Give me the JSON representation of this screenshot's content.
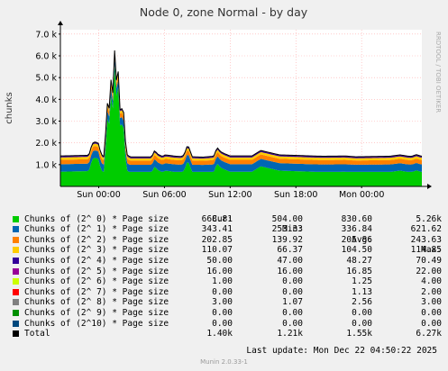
{
  "chart_data": {
    "type": "area",
    "title": "Node 0, zone Normal - by day",
    "ylabel": "chunks",
    "side_label": "RRDTOOL / TOBI OETIKER",
    "ylim": [
      0,
      7200
    ],
    "y_ticks": [
      {
        "value": 1000,
        "label": "1.0 k"
      },
      {
        "value": 2000,
        "label": "2.0 k"
      },
      {
        "value": 3000,
        "label": "3.0 k"
      },
      {
        "value": 4000,
        "label": "4.0 k"
      },
      {
        "value": 5000,
        "label": "5.0 k"
      },
      {
        "value": 6000,
        "label": "6.0 k"
      },
      {
        "value": 7000,
        "label": "7.0 k"
      }
    ],
    "x_range": [
      0,
      33
    ],
    "x_ticks": [
      {
        "value": 3.5,
        "label": "Sun 00:00"
      },
      {
        "value": 9.5,
        "label": "Sun 06:00"
      },
      {
        "value": 15.5,
        "label": "Sun 12:00"
      },
      {
        "value": 21.5,
        "label": "Sun 18:00"
      },
      {
        "value": 27.5,
        "label": "Mon 00:00"
      }
    ],
    "profile": {
      "x": [
        0,
        2.6,
        2.9,
        3.2,
        3.5,
        3.7,
        4.0,
        4.2,
        4.35,
        4.5,
        4.65,
        4.8,
        4.95,
        5.1,
        5.25,
        5.4,
        5.55,
        5.7,
        5.85,
        6.0,
        6.4,
        8.3,
        8.6,
        8.9,
        9.3,
        9.6,
        10.3,
        11.0,
        11.3,
        11.6,
        11.8,
        12.0,
        13.0,
        14.0,
        14.3,
        14.6,
        15.0,
        15.5,
        17.5,
        18.0,
        18.3,
        18.8,
        19.4,
        20.0,
        23.0,
        24.0,
        26.0,
        27.0,
        30.0,
        31.0,
        32.0,
        32.5,
        33.0
      ],
      "total": [
        1400,
        1430,
        1980,
        2050,
        1970,
        1480,
        1350,
        3100,
        4300,
        3300,
        5300,
        4200,
        6250,
        4800,
        5700,
        3600,
        3350,
        3900,
        2900,
        1500,
        1320,
        1320,
        1650,
        1480,
        1380,
        1450,
        1400,
        1350,
        1450,
        1900,
        1750,
        1330,
        1300,
        1380,
        1800,
        1600,
        1500,
        1400,
        1400,
        1560,
        1650,
        1590,
        1520,
        1450,
        1400,
        1380,
        1400,
        1330,
        1380,
        1450,
        1370,
        1460,
        1380
      ]
    },
    "series": [
      {
        "name": "Chunks of (2^ 0) * Page size",
        "color": "#00cc00",
        "cur": "668.81",
        "min": "504.00",
        "avg": "830.60",
        "max": "5.26k"
      },
      {
        "name": "Chunks of (2^ 1) * Page size",
        "color": "#0066b3",
        "cur": "343.41",
        "min": "253.33",
        "avg": "336.84",
        "max": "621.62"
      },
      {
        "name": "Chunks of (2^ 2) * Page size",
        "color": "#ff8000",
        "cur": "202.85",
        "min": "139.92",
        "avg": "205.86",
        "max": "243.63"
      },
      {
        "name": "Chunks of (2^ 3) * Page size",
        "color": "#ffcc00",
        "cur": "110.07",
        "min": "66.37",
        "avg": "104.50",
        "max": "114.85"
      },
      {
        "name": "Chunks of (2^ 4) * Page size",
        "color": "#330099",
        "cur": "50.00",
        "min": "47.00",
        "avg": "48.27",
        "max": "70.49"
      },
      {
        "name": "Chunks of (2^ 5) * Page size",
        "color": "#990099",
        "cur": "16.00",
        "min": "16.00",
        "avg": "16.85",
        "max": "22.00"
      },
      {
        "name": "Chunks of (2^ 6) * Page size",
        "color": "#ccff00",
        "cur": "1.00",
        "min": "0.00",
        "avg": "1.25",
        "max": "4.00"
      },
      {
        "name": "Chunks of (2^ 7) * Page size",
        "color": "#ff0000",
        "cur": "0.00",
        "min": "0.00",
        "avg": "1.13",
        "max": "2.00"
      },
      {
        "name": "Chunks of (2^ 8) * Page size",
        "color": "#808080",
        "cur": "3.00",
        "min": "1.07",
        "avg": "2.56",
        "max": "3.00"
      },
      {
        "name": "Chunks of (2^ 9) * Page size",
        "color": "#008f00",
        "cur": "0.00",
        "min": "0.00",
        "avg": "0.00",
        "max": "0.00"
      },
      {
        "name": "Chunks of (2^10) * Page size",
        "color": "#00487d",
        "cur": "0.00",
        "min": "0.00",
        "avg": "0.00",
        "max": "0.00"
      },
      {
        "name": "Total",
        "color": "#000000",
        "cur": "1.40k",
        "min": "1.21k",
        "avg": "1.55k",
        "max": "6.27k"
      }
    ],
    "legend_headers": {
      "cur": "Cur:",
      "min": "Min:",
      "avg": "Avg:",
      "max": "Max:"
    },
    "grid": true
  },
  "footer": {
    "last_update": "Last update:  Mon Dec 22 04:50:22 2025",
    "munin": "Munin 2.0.33-1"
  }
}
